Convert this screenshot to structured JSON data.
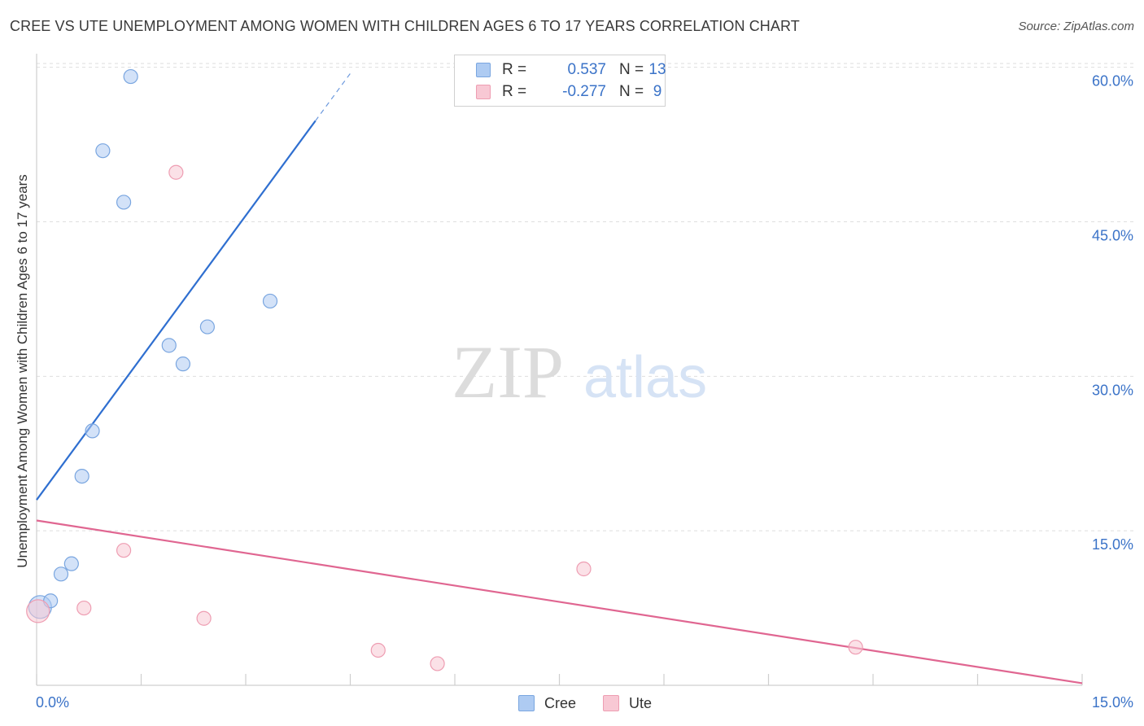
{
  "chart_data": {
    "type": "scatter",
    "title": "CREE VS UTE UNEMPLOYMENT AMONG WOMEN WITH CHILDREN AGES 6 TO 17 YEARS CORRELATION CHART",
    "source": "Source: ZipAtlas.com",
    "xlabel": "",
    "ylabel": "Unemployment Among Women with Children Ages 6 to 17 years",
    "xlim": [
      0,
      15
    ],
    "ylim": [
      0,
      61
    ],
    "x_tick_labels": [
      "0.0%",
      "15.0%"
    ],
    "y_ticks": [
      15,
      30,
      45,
      60
    ],
    "y_tick_labels": [
      "15.0%",
      "30.0%",
      "45.0%",
      "60.0%"
    ],
    "watermark": {
      "part1": "ZIP",
      "part2": "atlas"
    },
    "legend": {
      "r_label": "R =",
      "n_label": "N ="
    },
    "series": [
      {
        "name": "Cree",
        "color": "#aecbf2",
        "edge_color": "#7aa6e0",
        "line_color": "#2f6fd0",
        "r": "0.537",
        "n": "13",
        "points": [
          {
            "x": 0.05,
            "y": 7.6
          },
          {
            "x": 0.2,
            "y": 8.2
          },
          {
            "x": 0.35,
            "y": 10.8
          },
          {
            "x": 0.5,
            "y": 11.8
          },
          {
            "x": 0.65,
            "y": 20.3
          },
          {
            "x": 0.8,
            "y": 24.7
          },
          {
            "x": 0.95,
            "y": 51.9
          },
          {
            "x": 1.25,
            "y": 46.9
          },
          {
            "x": 1.35,
            "y": 59.1
          },
          {
            "x": 1.9,
            "y": 33.0
          },
          {
            "x": 2.1,
            "y": 31.2
          },
          {
            "x": 2.45,
            "y": 34.8
          },
          {
            "x": 3.35,
            "y": 37.3
          }
        ],
        "trend": {
          "x0": 0.0,
          "y0": 18.0,
          "x1": 4.0,
          "y1": 54.8,
          "dash_x1": 4.5,
          "dash_y1": 59.4
        }
      },
      {
        "name": "Ute",
        "color": "#f8c8d4",
        "edge_color": "#ee9db2",
        "line_color": "#e06691",
        "r": "-0.277",
        "n": "9",
        "points": [
          {
            "x": 0.02,
            "y": 7.2
          },
          {
            "x": 0.68,
            "y": 7.5
          },
          {
            "x": 1.25,
            "y": 13.1
          },
          {
            "x": 2.0,
            "y": 49.8
          },
          {
            "x": 2.4,
            "y": 6.5
          },
          {
            "x": 4.9,
            "y": 3.4
          },
          {
            "x": 5.75,
            "y": 2.1
          },
          {
            "x": 7.85,
            "y": 11.3
          },
          {
            "x": 11.75,
            "y": 3.7
          }
        ],
        "trend": {
          "x0": 0.0,
          "y0": 16.0,
          "x1": 15.0,
          "y1": 0.2
        }
      }
    ]
  }
}
